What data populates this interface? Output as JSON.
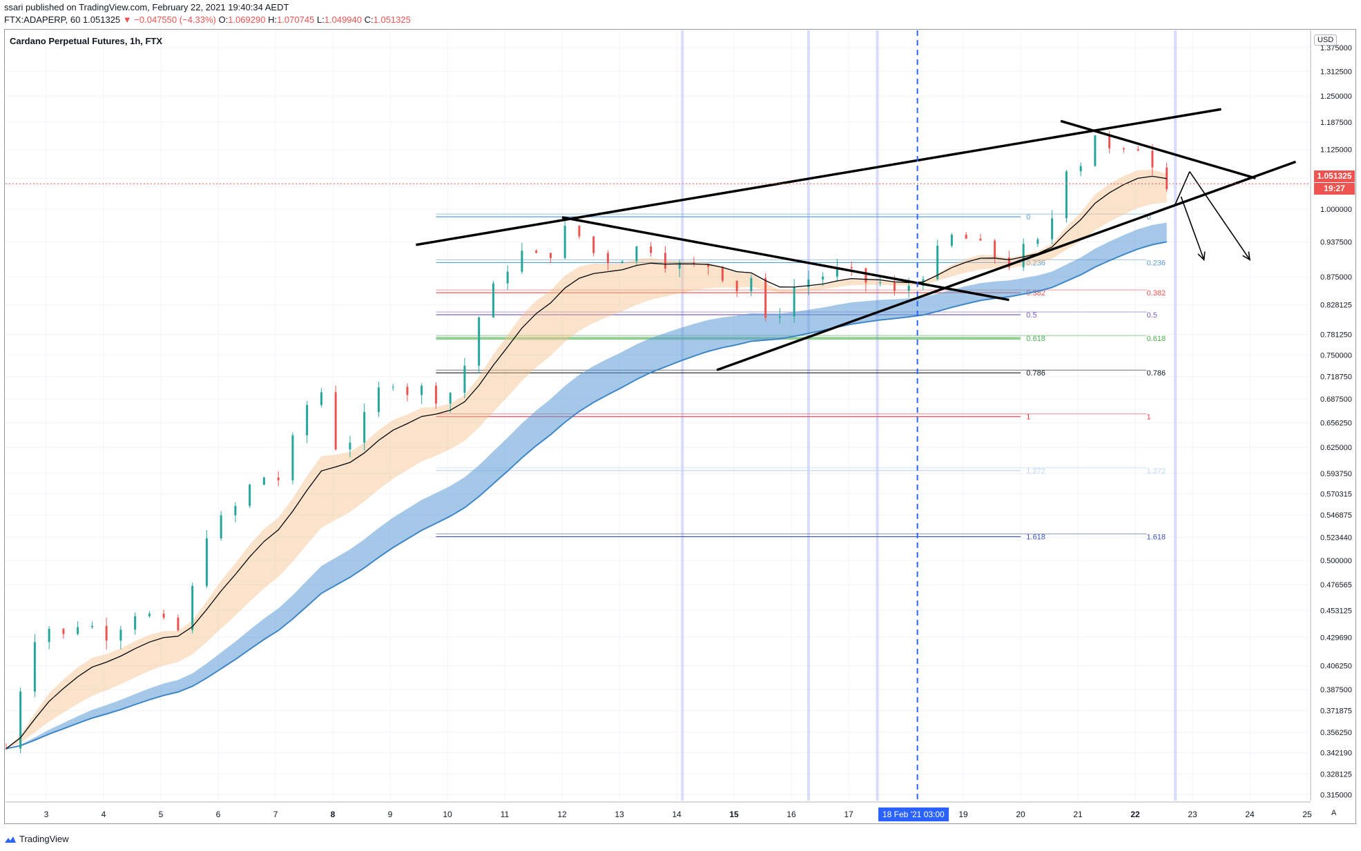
{
  "header": {
    "published_line": "ssari published on TradingView.com, February 22, 2021 19:40:34 AEDT",
    "symbol": "FTX:ADAPERP, 60",
    "last": "1.051325",
    "change_arrow": "▼",
    "change": "−0.047550 (−4.33%)",
    "o_label": "O:",
    "o_value": "1.069290",
    "h_label": "H:",
    "h_value": "1.070745",
    "l_label": "L:",
    "l_value": "1.049940",
    "c_label": "C:",
    "c_value": "1.051325"
  },
  "legend": {
    "title": "Cardano Perpetual Futures, 1h, FTX"
  },
  "badges": {
    "currency": "USD",
    "last_price": "1.051325",
    "countdown": "19:27",
    "crosshair_date": "18 Feb '21",
    "crosshair_time": "03:00",
    "auto": "A"
  },
  "footer": {
    "brand": "TradingView"
  },
  "colors": {
    "candle_up": "#26a69a",
    "candle_down": "#ef5350",
    "ema_fast": "#000000",
    "ribbon_blue": "#5b9bd5",
    "ribbon_orange": "#f5c08a",
    "crosshair": "#2962ff"
  },
  "chart_data": {
    "type": "candlestick",
    "title": "Cardano Perpetual Futures, 1h, FTX",
    "y_scale": "log",
    "ylim": [
      0.31,
      1.4
    ],
    "y_ticks": [
      "1.375000",
      "1.312500",
      "1.250000",
      "1.187500",
      "1.125000",
      "1.062500",
      "1.000000",
      "0.937500",
      "0.875000",
      "0.828125",
      "0.781250",
      "0.750000",
      "0.718750",
      "0.687500",
      "0.656250",
      "0.625000",
      "0.593750",
      "0.570315",
      "0.546875",
      "0.523440",
      "0.500000",
      "0.476565",
      "0.453125",
      "0.429690",
      "0.406250",
      "0.387500",
      "0.371875",
      "0.356250",
      "0.342190",
      "0.328125",
      "0.315000"
    ],
    "x_ticks": [
      {
        "label": "3",
        "day": 3
      },
      {
        "label": "4",
        "day": 4
      },
      {
        "label": "5",
        "day": 5
      },
      {
        "label": "6",
        "day": 6
      },
      {
        "label": "7",
        "day": 7
      },
      {
        "label": "8",
        "day": 8
      },
      {
        "label": "9",
        "day": 9
      },
      {
        "label": "10",
        "day": 10
      },
      {
        "label": "11",
        "day": 11
      },
      {
        "label": "12",
        "day": 12
      },
      {
        "label": "13",
        "day": 13
      },
      {
        "label": "14",
        "day": 14
      },
      {
        "label": "15",
        "day": 15
      },
      {
        "label": "16",
        "day": 16
      },
      {
        "label": "17",
        "day": 17
      },
      {
        "label": "19",
        "day": 19
      },
      {
        "label": "20",
        "day": 20
      },
      {
        "label": "21",
        "day": 21
      },
      {
        "label": "22",
        "day": 22
      },
      {
        "label": "23",
        "day": 23
      },
      {
        "label": "24",
        "day": 24
      },
      {
        "label": "25",
        "day": 25
      }
    ],
    "x_range_days": [
      2.3,
      25.0
    ],
    "price_path": [
      [
        2.3,
        0.345
      ],
      [
        2.5,
        0.38
      ],
      [
        2.75,
        0.43
      ],
      [
        3.0,
        0.44
      ],
      [
        3.3,
        0.43
      ],
      [
        3.6,
        0.445
      ],
      [
        4.0,
        0.432
      ],
      [
        4.3,
        0.442
      ],
      [
        4.6,
        0.455
      ],
      [
        5.0,
        0.44
      ],
      [
        5.3,
        0.435
      ],
      [
        5.5,
        0.46
      ],
      [
        5.8,
        0.53
      ],
      [
        6.2,
        0.545
      ],
      [
        6.5,
        0.575
      ],
      [
        6.9,
        0.595
      ],
      [
        7.1,
        0.585
      ],
      [
        7.3,
        0.63
      ],
      [
        7.6,
        0.69
      ],
      [
        7.85,
        0.7
      ],
      [
        8.0,
        0.62
      ],
      [
        8.15,
        0.645
      ],
      [
        8.4,
        0.63
      ],
      [
        8.7,
        0.69
      ],
      [
        9.1,
        0.72
      ],
      [
        9.3,
        0.7
      ],
      [
        9.6,
        0.7
      ],
      [
        9.9,
        0.69
      ],
      [
        10.2,
        0.705
      ],
      [
        10.5,
        0.8
      ],
      [
        10.9,
        0.87
      ],
      [
        11.2,
        0.92
      ],
      [
        11.6,
        0.905
      ],
      [
        11.9,
        0.93
      ],
      [
        12.15,
        0.975
      ],
      [
        12.4,
        0.93
      ],
      [
        12.7,
        0.905
      ],
      [
        13.1,
        0.915
      ],
      [
        13.5,
        0.935
      ],
      [
        13.8,
        0.905
      ],
      [
        14.2,
        0.885
      ],
      [
        14.5,
        0.9
      ],
      [
        14.9,
        0.875
      ],
      [
        15.1,
        0.85
      ],
      [
        15.3,
        0.875
      ],
      [
        15.45,
        0.84
      ],
      [
        15.6,
        0.775
      ],
      [
        15.8,
        0.82
      ],
      [
        16.1,
        0.865
      ],
      [
        16.4,
        0.875
      ],
      [
        16.9,
        0.885
      ],
      [
        17.2,
        0.865
      ],
      [
        17.5,
        0.87
      ],
      [
        17.75,
        0.84
      ],
      [
        18.1,
        0.865
      ],
      [
        18.4,
        0.895
      ],
      [
        18.7,
        0.935
      ],
      [
        18.9,
        0.955
      ],
      [
        19.2,
        0.93
      ],
      [
        19.5,
        0.915
      ],
      [
        19.8,
        0.9
      ],
      [
        20.1,
        0.925
      ],
      [
        20.4,
        0.935
      ],
      [
        20.55,
        0.985
      ],
      [
        20.7,
        1.1
      ],
      [
        21.0,
        1.08
      ],
      [
        21.25,
        1.175
      ],
      [
        21.5,
        1.12
      ],
      [
        21.8,
        1.11
      ],
      [
        22.0,
        1.14
      ],
      [
        22.3,
        1.1
      ],
      [
        22.5,
        1.06
      ],
      [
        22.7,
        1.051325
      ]
    ],
    "last_price": 1.051325,
    "fib_levels": [
      {
        "label": "0",
        "price": 0.985,
        "color": "#5b9bd5"
      },
      {
        "label": "0.236",
        "price": 0.9,
        "color": "#5b9bd5"
      },
      {
        "label": "0.382",
        "price": 0.848,
        "color": "#ef5350"
      },
      {
        "label": "0.5",
        "price": 0.812,
        "color": "#7b5cc2"
      },
      {
        "label": "0.618",
        "price": 0.775,
        "color": "#4caf50"
      },
      {
        "label": "0.786",
        "price": 0.724,
        "color": "#131722"
      },
      {
        "label": "1",
        "price": 0.664,
        "color": "#f23645"
      },
      {
        "label": "1.272",
        "price": 0.597,
        "color": "#bcd3f5"
      },
      {
        "label": "1.618",
        "price": 0.524,
        "color": "#3f51b5"
      }
    ],
    "trendlines": [
      {
        "name": "channel-top",
        "from": [
          9.45,
          0.932
        ],
        "to": [
          23.5,
          1.218
        ]
      },
      {
        "name": "channel-bottom",
        "from": [
          14.7,
          0.728
        ],
        "to": [
          24.8,
          1.098
        ]
      },
      {
        "name": "descending-mid",
        "from": [
          12.0,
          0.984
        ],
        "to": [
          19.8,
          0.836
        ]
      },
      {
        "name": "descending-top",
        "from": [
          20.7,
          1.19
        ],
        "to": [
          24.1,
          1.063
        ]
      }
    ],
    "projection": [
      {
        "from": [
          22.7,
          1.01
        ],
        "to": [
          22.95,
          1.077
        ]
      },
      {
        "from": [
          22.95,
          1.077
        ],
        "to": [
          24.0,
          0.905
        ]
      },
      {
        "from": [
          22.8,
          1.025
        ],
        "to": [
          23.2,
          0.905
        ]
      }
    ],
    "session_markers_days": [
      14.1,
      16.3,
      17.5,
      22.7
    ],
    "crosshair_day": 18.2
  }
}
